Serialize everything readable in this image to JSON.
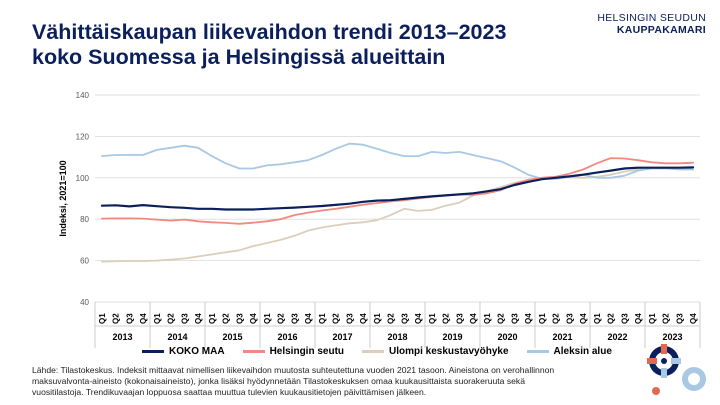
{
  "title": {
    "line1": "Vähittäiskaupan liikevaihdon trendi 2013–2023",
    "line2": "koko Suomessa ja Helsingissä alueittain"
  },
  "logo": {
    "line1": "HELSINGIN SEUDUN",
    "line2": "KAUPPAKAMARI"
  },
  "footer": {
    "line1": "Lähde: Tilastokeskus. Indeksit mittaavat nimellisen liikevaihdon muutosta suhteutettuna vuoden 2021 tasoon. Aineistona on verohallinnon",
    "line2": "maksuvalvonta-aineisto (kokonaisaineisto), jonka lisäksi hyödynnetään Tilastokeskuksen omaa kuukausittaista suorakeruuta sekä",
    "line3": "vuositilastoja. Trendikuvaajan loppuosa saattaa muuttua tulevien kuukausitietojen päivittämisen jälkeen."
  },
  "colors": {
    "title": "#0b1f5c",
    "koko_maa": "#0b1f5c",
    "helsingin_seutu": "#f08a80",
    "ulompi": "#d9cfbb",
    "aleksin": "#a9c8e4",
    "grid": "#d9d9d9"
  },
  "chart_data": {
    "type": "line",
    "title": "Vähittäiskaupan liikevaihdon trendi 2013–2023 koko Suomessa ja Helsingissä alueittain",
    "xlabel": "",
    "ylabel": "Indeksi, 2021=100",
    "ylim": [
      40,
      140
    ],
    "yticks": [
      40,
      60,
      80,
      100,
      120,
      140
    ],
    "grid": true,
    "legend_position": "bottom",
    "quarters": [
      "Q1",
      "Q2",
      "Q3",
      "Q4"
    ],
    "years": [
      "2013",
      "2014",
      "2015",
      "2016",
      "2017",
      "2018",
      "2019",
      "2020",
      "2021",
      "2022",
      "2023"
    ],
    "series": [
      {
        "name": "KOKO MAA",
        "color": "#0b1f5c",
        "values": [
          86.5,
          86.7,
          86.2,
          86.8,
          86.3,
          85.8,
          85.5,
          85.0,
          85.0,
          84.7,
          84.7,
          84.7,
          85.0,
          85.3,
          85.6,
          86.0,
          86.4,
          86.9,
          87.5,
          88.4,
          89.0,
          89.2,
          89.8,
          90.5,
          91.0,
          91.5,
          92.0,
          92.5,
          93.5,
          94.5,
          96.5,
          98.0,
          99.3,
          100.0,
          100.7,
          101.5,
          102.5,
          103.5,
          104.5,
          104.9,
          104.9,
          104.9,
          104.9,
          105.0
        ]
      },
      {
        "name": "Helsingin seutu",
        "color": "#f08a80",
        "values": [
          80.3,
          80.4,
          80.4,
          80.3,
          79.8,
          79.3,
          79.8,
          79.0,
          78.5,
          78.2,
          77.8,
          78.3,
          79.0,
          80.0,
          82.0,
          83.2,
          84.2,
          85.0,
          86.0,
          87.0,
          87.8,
          88.6,
          89.2,
          90.0,
          90.8,
          91.5,
          92.0,
          91.8,
          92.5,
          94.0,
          97.0,
          99.0,
          100.0,
          100.5,
          102.0,
          104.0,
          107.0,
          109.5,
          109.3,
          108.5,
          107.5,
          107.0,
          107.0,
          107.3
        ]
      },
      {
        "name": "Ulompi keskustavyöhyke",
        "color": "#d9cfbb",
        "values": [
          59.5,
          59.7,
          59.8,
          59.8,
          60.0,
          60.5,
          61.0,
          62.0,
          63.0,
          64.0,
          65.0,
          67.0,
          68.5,
          70.0,
          72.0,
          74.5,
          76.0,
          77.0,
          78.0,
          78.5,
          79.5,
          82.0,
          85.0,
          84.0,
          84.5,
          86.5,
          88.0,
          91.5,
          93.5,
          95.5,
          97.5,
          99.0,
          100.0,
          100.5,
          100.3,
          100.0,
          100.5,
          101.5,
          103.0,
          104.0,
          104.5,
          104.5,
          104.3,
          104.0
        ]
      },
      {
        "name": "Aleksin alue",
        "color": "#a9c8e4",
        "values": [
          110.5,
          111.0,
          111.0,
          111.0,
          113.5,
          114.5,
          115.5,
          114.5,
          110.5,
          107.0,
          104.5,
          104.5,
          106.0,
          106.5,
          107.5,
          108.5,
          111.0,
          114.0,
          116.5,
          116.0,
          114.0,
          112.0,
          110.5,
          110.5,
          112.5,
          112.0,
          112.5,
          111.0,
          109.5,
          108.0,
          105.0,
          101.5,
          99.5,
          99.5,
          100.5,
          101.5,
          100.0,
          100.0,
          101.0,
          103.5,
          104.5,
          104.5,
          104.0,
          104.0
        ]
      }
    ]
  }
}
